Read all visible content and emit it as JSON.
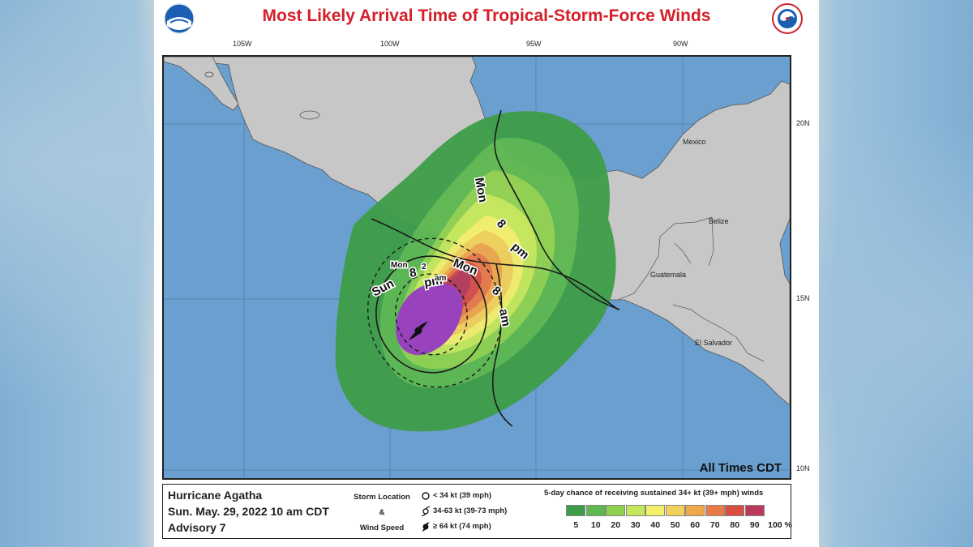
{
  "title": "Most Likely Arrival Time of Tropical-Storm-Force Winds",
  "logos": [
    "noaa-logo",
    "national-weather-service-logo"
  ],
  "axes": {
    "longitude_labels": [
      "105W",
      "100W",
      "95W",
      "90W"
    ],
    "latitude_labels": [
      "20N",
      "15N",
      "10N"
    ]
  },
  "place_labels": {
    "mexico": "Mexico",
    "belize": "Belize",
    "guatemala": "Guatemala",
    "el_salvador": "El Salvador"
  },
  "arrival_time_labels": {
    "sun_8pm": [
      "Sun",
      "8",
      "pm"
    ],
    "mon_2am": [
      "Mon",
      "2",
      "am"
    ],
    "mon_8am": [
      "Mon",
      "8",
      "am"
    ],
    "mon_8pm": [
      "Mon",
      "8",
      "pm"
    ]
  },
  "times_note": "All Times CDT",
  "storm": {
    "name": "Hurricane Agatha",
    "date": "Sun. May. 29, 2022  10 am CDT",
    "advisory": "Advisory 7"
  },
  "key": {
    "title_lines": [
      "Storm Location",
      "&",
      "Wind Speed"
    ],
    "items": [
      {
        "icon": "open-circle-icon",
        "label": "< 34 kt (39 mph)"
      },
      {
        "icon": "tropical-storm-symbol-icon",
        "label": "34-63 kt (39-73 mph)"
      },
      {
        "icon": "hurricane-symbol-icon",
        "label": "≥ 64 kt (74 mph)"
      }
    ]
  },
  "probability_scale": {
    "title": "5-day chance of receiving sustained 34+ kt (39+ mph) winds",
    "ticks": [
      "5",
      "10",
      "20",
      "30",
      "40",
      "50",
      "60",
      "70",
      "80",
      "90",
      "100 %"
    ],
    "colors": [
      "#3e9d48",
      "#5cb84f",
      "#8fd14f",
      "#c5e85a",
      "#f4f06a",
      "#f2d15a",
      "#efa74a",
      "#e97a48",
      "#d94d45",
      "#b93a5a",
      "#9b3fbd"
    ]
  },
  "colors": {
    "ocean": "#6a9fcf",
    "land": "#c7c7c7",
    "title_red": "#d4202a"
  }
}
